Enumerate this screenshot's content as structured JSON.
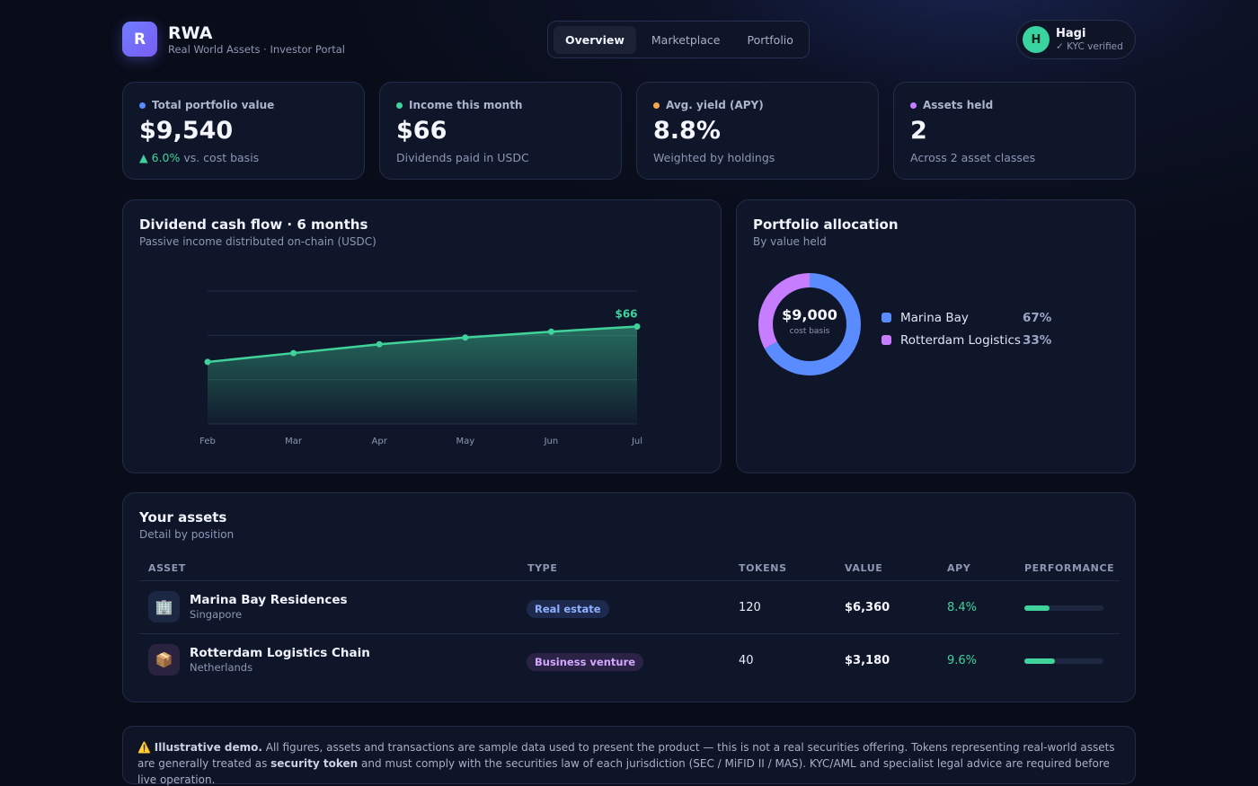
{
  "brand": {
    "logo_letter": "R",
    "name": "RWA",
    "subtitle": "Real World Assets · Investor Portal"
  },
  "nav": {
    "tabs": [
      "Overview",
      "Marketplace",
      "Portfolio"
    ],
    "active": "Overview"
  },
  "user": {
    "initial": "H",
    "name": "Hagi",
    "kyc": "✓ KYC verified"
  },
  "stats": [
    {
      "label": "Total portfolio value",
      "value": "$9,540",
      "sub_up": "▲ 6.0%",
      "sub": " vs. cost basis",
      "color": "#5b8cff"
    },
    {
      "label": "Income this month",
      "value": "$66",
      "sub": "Dividends paid in USDC",
      "color": "#3fd39b"
    },
    {
      "label": "Avg. yield (APY)",
      "value": "8.8%",
      "sub": "Weighted by holdings",
      "color": "#f5a84a"
    },
    {
      "label": "Assets held",
      "value": "2",
      "sub": "Across 2 asset classes",
      "color": "#c77dff"
    }
  ],
  "cashflow": {
    "title": "Dividend cash flow · 6 months",
    "subtitle": "Passive income distributed on-chain (USDC)"
  },
  "chart_data": {
    "type": "area",
    "title": "Dividend cash flow · 6 months",
    "categories": [
      "Feb",
      "Mar",
      "Apr",
      "May",
      "Jun",
      "Jul"
    ],
    "values": [
      42,
      48,
      54,
      58.5,
      62.5,
      66
    ],
    "last_label": "$66",
    "ylim": [
      0,
      90
    ],
    "grid": true,
    "color": "#3fd39b"
  },
  "allocation": {
    "title": "Portfolio allocation",
    "subtitle": "By value held",
    "center_value": "$9,000",
    "center_label": "cost basis",
    "items": [
      {
        "name": "Marina Bay",
        "pct": "67%",
        "value": 67,
        "color": "#5b8cff"
      },
      {
        "name": "Rotterdam Logistics",
        "pct": "33%",
        "value": 33,
        "color": "#c77dff"
      }
    ]
  },
  "assets": {
    "title": "Your assets",
    "subtitle": "Detail by position",
    "columns": [
      "ASSET",
      "TYPE",
      "TOKENS",
      "VALUE",
      "APY",
      "PERFORMANCE"
    ],
    "rows": [
      {
        "icon": "🏢",
        "icon_name": "building-icon",
        "name": "Marina Bay Residences",
        "location": "Singapore",
        "type": "Real estate",
        "tokens": "120",
        "value": "$6,360",
        "apy": "8.4%",
        "performance": 0.32
      },
      {
        "icon": "📦",
        "icon_name": "package-icon",
        "name": "Rotterdam Logistics Chain",
        "location": "Netherlands",
        "type": "Business venture",
        "tokens": "40",
        "value": "$3,180",
        "apy": "9.6%",
        "performance": 0.39
      }
    ]
  },
  "disclaimer": {
    "icon": "⚠️",
    "lead": "Illustrative demo.",
    "text1": " All figures, assets and transactions are sample data used to present the product — this is not a real securities offering. Tokens representing real-world assets are generally treated as ",
    "bold2": "security token",
    "text2": " and must comply with the securities law of each jurisdiction (SEC / MiFID II / MAS). KYC/AML and specialist legal advice are required before live operation."
  }
}
